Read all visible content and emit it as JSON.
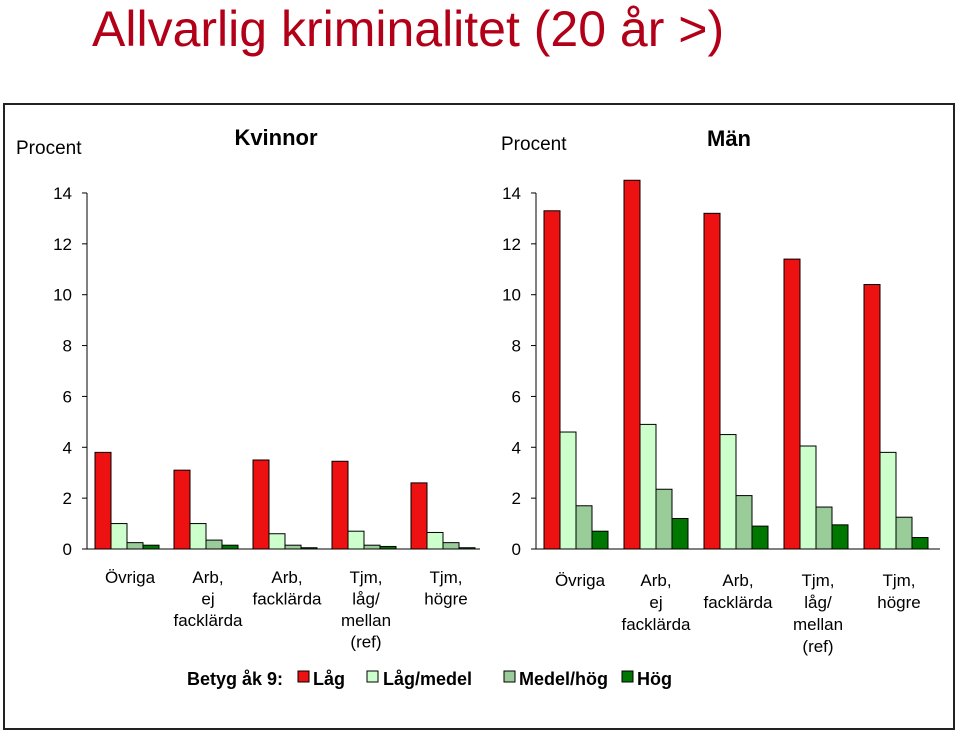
{
  "slide": {
    "title": "Allvarlig kriminalitet (20 år >)"
  },
  "legend": {
    "prefix": "Betyg åk 9:",
    "items": [
      "Låg",
      "Låg/medel",
      "Medel/hög",
      "Hög"
    ],
    "colors": [
      "#ee1111",
      "#ccffcc",
      "#99cc99",
      "#007700"
    ]
  },
  "chart_data": [
    {
      "type": "bar",
      "title": "Kvinnor",
      "ylabel": "Procent",
      "ylim": [
        0,
        14
      ],
      "yticks": [
        "0",
        "2",
        "4",
        "6",
        "8",
        "10",
        "12",
        "14"
      ],
      "categories": [
        [
          "Övriga"
        ],
        [
          "Arb,",
          "ej",
          "facklärda"
        ],
        [
          "Arb,",
          "facklärda"
        ],
        [
          "Tjm,",
          "låg/",
          "mellan",
          "(ref)"
        ],
        [
          "Tjm,",
          "högre"
        ]
      ],
      "series": [
        {
          "name": "Låg",
          "values": [
            3.8,
            3.1,
            3.5,
            3.45,
            2.6
          ]
        },
        {
          "name": "Låg/medel",
          "values": [
            1.0,
            1.0,
            0.6,
            0.7,
            0.65
          ]
        },
        {
          "name": "Medel/hög",
          "values": [
            0.25,
            0.35,
            0.15,
            0.15,
            0.25
          ]
        },
        {
          "name": "Hög",
          "values": [
            0.15,
            0.15,
            0.05,
            0.1,
            0.05
          ]
        }
      ]
    },
    {
      "type": "bar",
      "title": "Män",
      "ylabel": "Procent",
      "ylim": [
        0,
        14
      ],
      "yticks": [
        "0",
        "2",
        "4",
        "6",
        "8",
        "10",
        "12",
        "14"
      ],
      "categories": [
        [
          "Övriga"
        ],
        [
          "Arb,",
          "ej",
          "facklärda"
        ],
        [
          "Arb,",
          "facklärda"
        ],
        [
          "Tjm,",
          "låg/",
          "mellan",
          "(ref)"
        ],
        [
          "Tjm,",
          "högre"
        ]
      ],
      "series": [
        {
          "name": "Låg",
          "values": [
            13.3,
            14.5,
            13.2,
            11.4,
            10.4
          ]
        },
        {
          "name": "Låg/medel",
          "values": [
            4.6,
            4.9,
            4.5,
            4.05,
            3.8
          ]
        },
        {
          "name": "Medel/hög",
          "values": [
            1.7,
            2.35,
            2.1,
            1.65,
            1.25
          ]
        },
        {
          "name": "Hög",
          "values": [
            0.7,
            1.2,
            0.9,
            0.95,
            0.45
          ]
        }
      ]
    }
  ]
}
